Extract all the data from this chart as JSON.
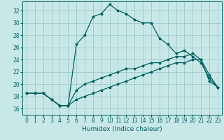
{
  "xlabel": "Humidex (Indice chaleur)",
  "background_color": "#c8e8e8",
  "grid_color": "#a0c8c8",
  "line_color": "#006060",
  "xlim": [
    -0.5,
    23.5
  ],
  "ylim": [
    15.0,
    33.5
  ],
  "xticks": [
    0,
    1,
    2,
    3,
    4,
    5,
    6,
    7,
    8,
    9,
    10,
    11,
    12,
    13,
    14,
    15,
    16,
    17,
    18,
    19,
    20,
    21,
    22,
    23
  ],
  "yticks": [
    16,
    18,
    20,
    22,
    24,
    26,
    28,
    30,
    32
  ],
  "curve1_x": [
    0,
    1,
    2,
    3,
    4,
    5,
    6,
    7,
    8,
    9,
    10,
    11,
    12,
    13,
    14,
    15,
    16,
    17,
    18,
    19,
    20,
    21,
    22,
    23
  ],
  "curve1_y": [
    18.5,
    18.5,
    18.5,
    17.5,
    16.5,
    16.5,
    26.5,
    28.0,
    31.0,
    31.5,
    33.0,
    32.0,
    31.5,
    30.5,
    30.0,
    30.0,
    27.5,
    26.5,
    25.0,
    25.5,
    24.5,
    23.5,
    21.0,
    19.5
  ],
  "curve2_x": [
    0,
    1,
    2,
    3,
    4,
    5,
    6,
    7,
    8,
    9,
    10,
    11,
    12,
    13,
    14,
    15,
    16,
    17,
    18,
    19,
    20,
    21,
    22,
    23
  ],
  "curve2_y": [
    18.5,
    18.5,
    18.5,
    17.5,
    16.5,
    16.5,
    19.0,
    20.0,
    20.5,
    21.0,
    21.5,
    22.0,
    22.5,
    22.5,
    23.0,
    23.5,
    23.5,
    24.0,
    24.5,
    24.5,
    25.0,
    24.0,
    21.5,
    19.5
  ],
  "curve3_x": [
    0,
    1,
    2,
    3,
    4,
    5,
    6,
    7,
    8,
    9,
    10,
    11,
    12,
    13,
    14,
    15,
    16,
    17,
    18,
    19,
    20,
    21,
    22,
    23
  ],
  "curve3_y": [
    18.5,
    18.5,
    18.5,
    17.5,
    16.5,
    16.5,
    17.5,
    18.0,
    18.5,
    19.0,
    19.5,
    20.0,
    20.5,
    21.0,
    21.5,
    22.0,
    22.5,
    23.0,
    23.5,
    23.5,
    24.0,
    24.0,
    20.5,
    19.5
  ],
  "tick_fontsize": 5.5,
  "xlabel_fontsize": 6.5,
  "linewidth": 0.9,
  "markersize": 2.5
}
